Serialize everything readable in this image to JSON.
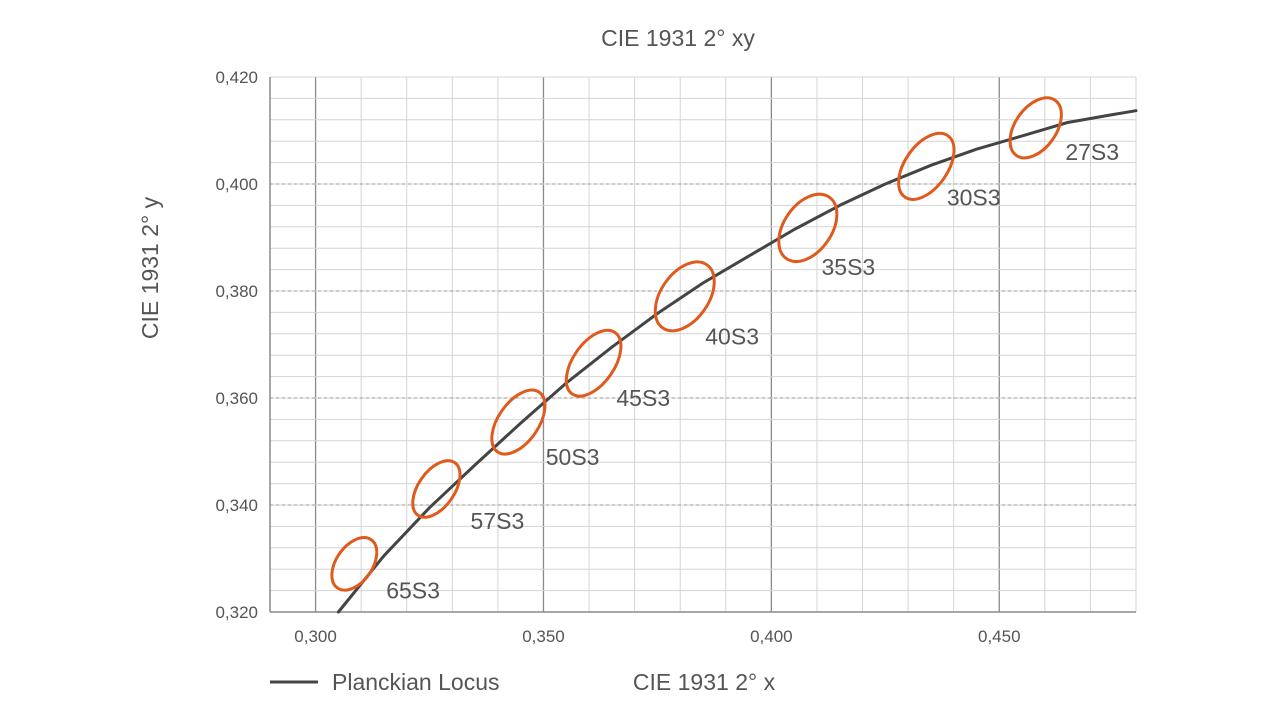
{
  "chart_data": {
    "type": "line",
    "title": "CIE 1931 2° xy",
    "xlabel": "CIE 1931 2° x",
    "ylabel": "CIE 1931 2° y",
    "xlim": [
      0.29,
      0.48
    ],
    "ylim": [
      0.32,
      0.42
    ],
    "x_ticks": [
      {
        "value": 0.3,
        "label": "0,300"
      },
      {
        "value": 0.35,
        "label": "0,350"
      },
      {
        "value": 0.4,
        "label": "0,400"
      },
      {
        "value": 0.45,
        "label": "0,450"
      }
    ],
    "y_ticks": [
      {
        "value": 0.32,
        "label": "0,320"
      },
      {
        "value": 0.34,
        "label": "0,340"
      },
      {
        "value": 0.36,
        "label": "0,360"
      },
      {
        "value": 0.38,
        "label": "0,380"
      },
      {
        "value": 0.4,
        "label": "0,400"
      },
      {
        "value": 0.42,
        "label": "0,420"
      }
    ],
    "grid": true,
    "series": [
      {
        "name": "Planckian Locus",
        "color": "#444444",
        "x": [
          0.305,
          0.315,
          0.325,
          0.335,
          0.345,
          0.355,
          0.365,
          0.375,
          0.385,
          0.395,
          0.405,
          0.415,
          0.425,
          0.435,
          0.445,
          0.455,
          0.465,
          0.475,
          0.48
        ],
        "y": [
          0.32,
          0.3305,
          0.3395,
          0.3475,
          0.3553,
          0.3628,
          0.3695,
          0.3758,
          0.3815,
          0.3865,
          0.3915,
          0.396,
          0.4,
          0.4035,
          0.4065,
          0.409,
          0.4115,
          0.413,
          0.4137
        ]
      }
    ],
    "ellipses": [
      {
        "label": "65S3",
        "cx": 0.3085,
        "cy": 0.329,
        "rx": 0.0072,
        "ry": 0.0055,
        "color": "#e05a1e"
      },
      {
        "label": "57S3",
        "cx": 0.3265,
        "cy": 0.343,
        "rx": 0.0072,
        "ry": 0.006,
        "color": "#e05a1e"
      },
      {
        "label": "50S3",
        "cx": 0.3445,
        "cy": 0.3555,
        "rx": 0.008,
        "ry": 0.0068,
        "color": "#e05a1e"
      },
      {
        "label": "45S3",
        "cx": 0.361,
        "cy": 0.3665,
        "rx": 0.0082,
        "ry": 0.007,
        "color": "#e05a1e"
      },
      {
        "label": "40S3",
        "cx": 0.381,
        "cy": 0.379,
        "rx": 0.0095,
        "ry": 0.0072,
        "color": "#e05a1e"
      },
      {
        "label": "35S3",
        "cx": 0.408,
        "cy": 0.3918,
        "rx": 0.0095,
        "ry": 0.007,
        "color": "#e05a1e"
      },
      {
        "label": "30S3",
        "cx": 0.434,
        "cy": 0.4033,
        "rx": 0.0085,
        "ry": 0.007,
        "color": "#e05a1e"
      },
      {
        "label": "27S3",
        "cx": 0.458,
        "cy": 0.4105,
        "rx": 0.0082,
        "ry": 0.0063,
        "color": "#e05a1e"
      }
    ],
    "ellipse_labels": [
      {
        "text": "65S3",
        "x": 0.3155,
        "y": 0.3225
      },
      {
        "text": "57S3",
        "x": 0.334,
        "y": 0.3355
      },
      {
        "text": "50S3",
        "x": 0.3505,
        "y": 0.3475
      },
      {
        "text": "45S3",
        "x": 0.366,
        "y": 0.3585
      },
      {
        "text": "40S3",
        "x": 0.3855,
        "y": 0.37
      },
      {
        "text": "35S3",
        "x": 0.411,
        "y": 0.383
      },
      {
        "text": "30S3",
        "x": 0.4385,
        "y": 0.396
      },
      {
        "text": "27S3",
        "x": 0.4645,
        "y": 0.4045
      }
    ],
    "legend": {
      "position": "bottom-left",
      "label": "Planckian Locus"
    }
  }
}
